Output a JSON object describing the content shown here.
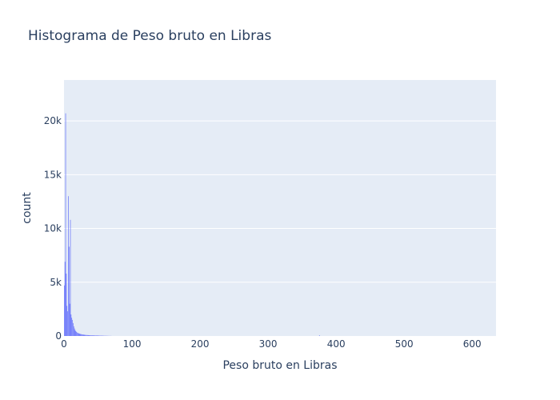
{
  "chart_data": {
    "type": "bar",
    "title": "Histograma de Peso bruto en Libras",
    "xlabel": "Peso bruto en Libras",
    "ylabel": "count",
    "xlim": [
      0,
      635
    ],
    "ylim": [
      0,
      23800
    ],
    "x_ticks": [
      0,
      100,
      200,
      300,
      400,
      500,
      600
    ],
    "x_tick_labels": [
      "0",
      "100",
      "200",
      "300",
      "400",
      "500",
      "600"
    ],
    "y_ticks": [
      0,
      5000,
      10000,
      15000,
      20000
    ],
    "y_tick_labels": [
      "0",
      "5k",
      "10k",
      "15k",
      "20k"
    ],
    "bin_width": 1,
    "bin_start": 0,
    "values": [
      4700,
      6900,
      20700,
      5800,
      2800,
      2300,
      13000,
      8300,
      3000,
      10800,
      2000,
      1700,
      1500,
      1200,
      900,
      700,
      550,
      450,
      380,
      320,
      280,
      250,
      230,
      200,
      180,
      170,
      150,
      140,
      130,
      120,
      110,
      100,
      95,
      90,
      85,
      80,
      75,
      70,
      68,
      65,
      62,
      60,
      58,
      56,
      54,
      52,
      50,
      48,
      46,
      44,
      42,
      40,
      38,
      36,
      34,
      32,
      30,
      28,
      26,
      24,
      22,
      20,
      18,
      16,
      14,
      12,
      10,
      9,
      8,
      7
    ],
    "extra_bars": [
      {
        "x": 375,
        "value": 60
      }
    ],
    "grid": true,
    "legend": "none",
    "colors": {
      "bar": "#636efa",
      "plot_bg": "#e5ecf6",
      "grid": "#ffffff",
      "text": "#2a3f5f"
    }
  }
}
